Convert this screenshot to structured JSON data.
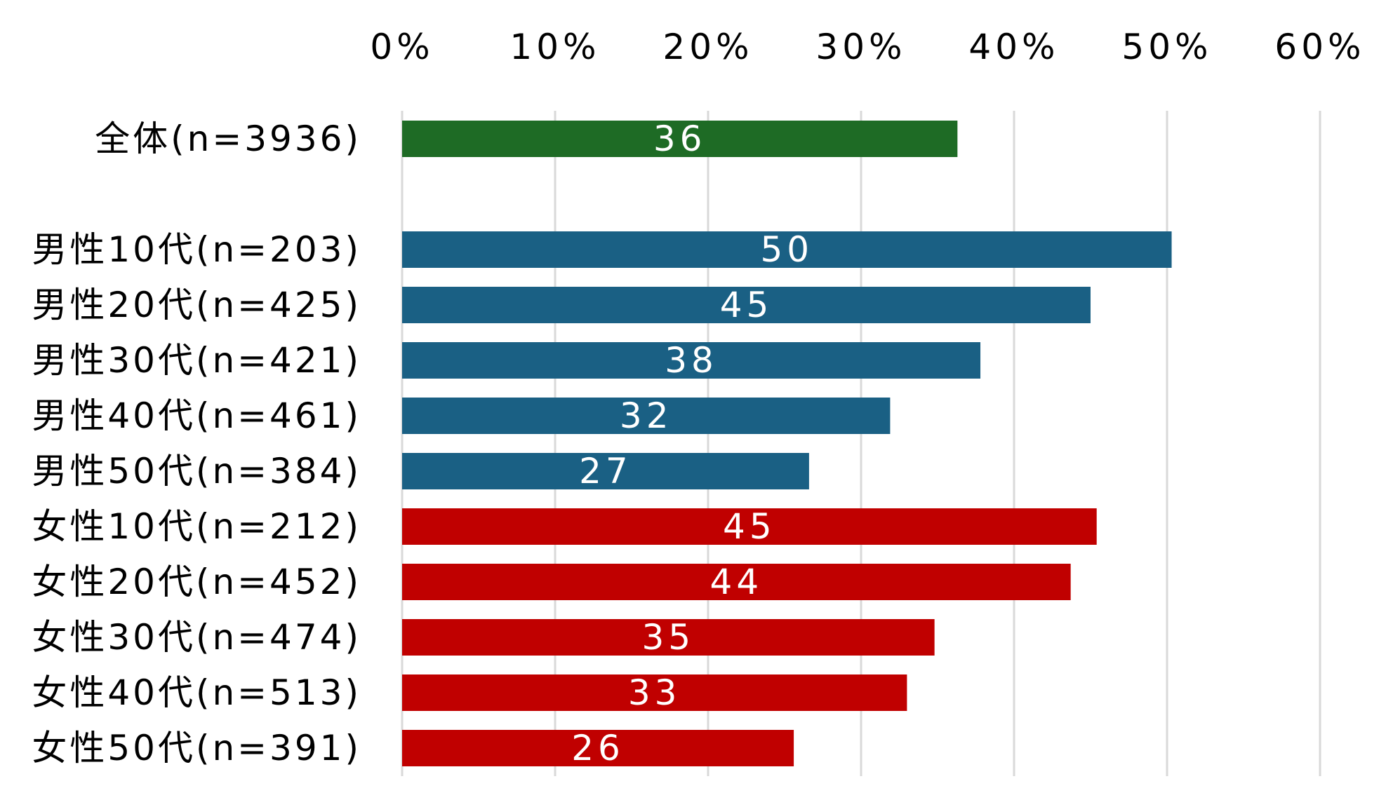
{
  "chart_data": {
    "type": "bar",
    "orientation": "horizontal",
    "title": "",
    "xlabel": "",
    "ylabel": "",
    "xlim": [
      0,
      60
    ],
    "x_ticks": [
      "0%",
      "10%",
      "20%",
      "30%",
      "40%",
      "50%",
      "60%"
    ],
    "x_axis_position": "top",
    "grid": true,
    "legend": "none",
    "categories": [
      "全体(n=3936)",
      "男性10代(n=203)",
      "男性20代(n=425)",
      "男性30代(n=421)",
      "男性40代(n=461)",
      "男性50代(n=384)",
      "女性10代(n=212)",
      "女性20代(n=452)",
      "女性30代(n=474)",
      "女性40代(n=513)",
      "女性50代(n=391)"
    ],
    "values": [
      36.3,
      50.3,
      45.0,
      37.8,
      31.9,
      26.6,
      45.4,
      43.7,
      34.8,
      33.0,
      25.6
    ],
    "data_labels": [
      "36",
      "50",
      "45",
      "38",
      "32",
      "27",
      "45",
      "44",
      "35",
      "33",
      "26"
    ],
    "groups": [
      "total",
      "male",
      "male",
      "male",
      "male",
      "male",
      "female",
      "female",
      "female",
      "female",
      "female"
    ],
    "colors": {
      "total": "#1e6b25",
      "male": "#1a6084",
      "female": "#c00000",
      "grid": "#d9d9d9"
    }
  }
}
